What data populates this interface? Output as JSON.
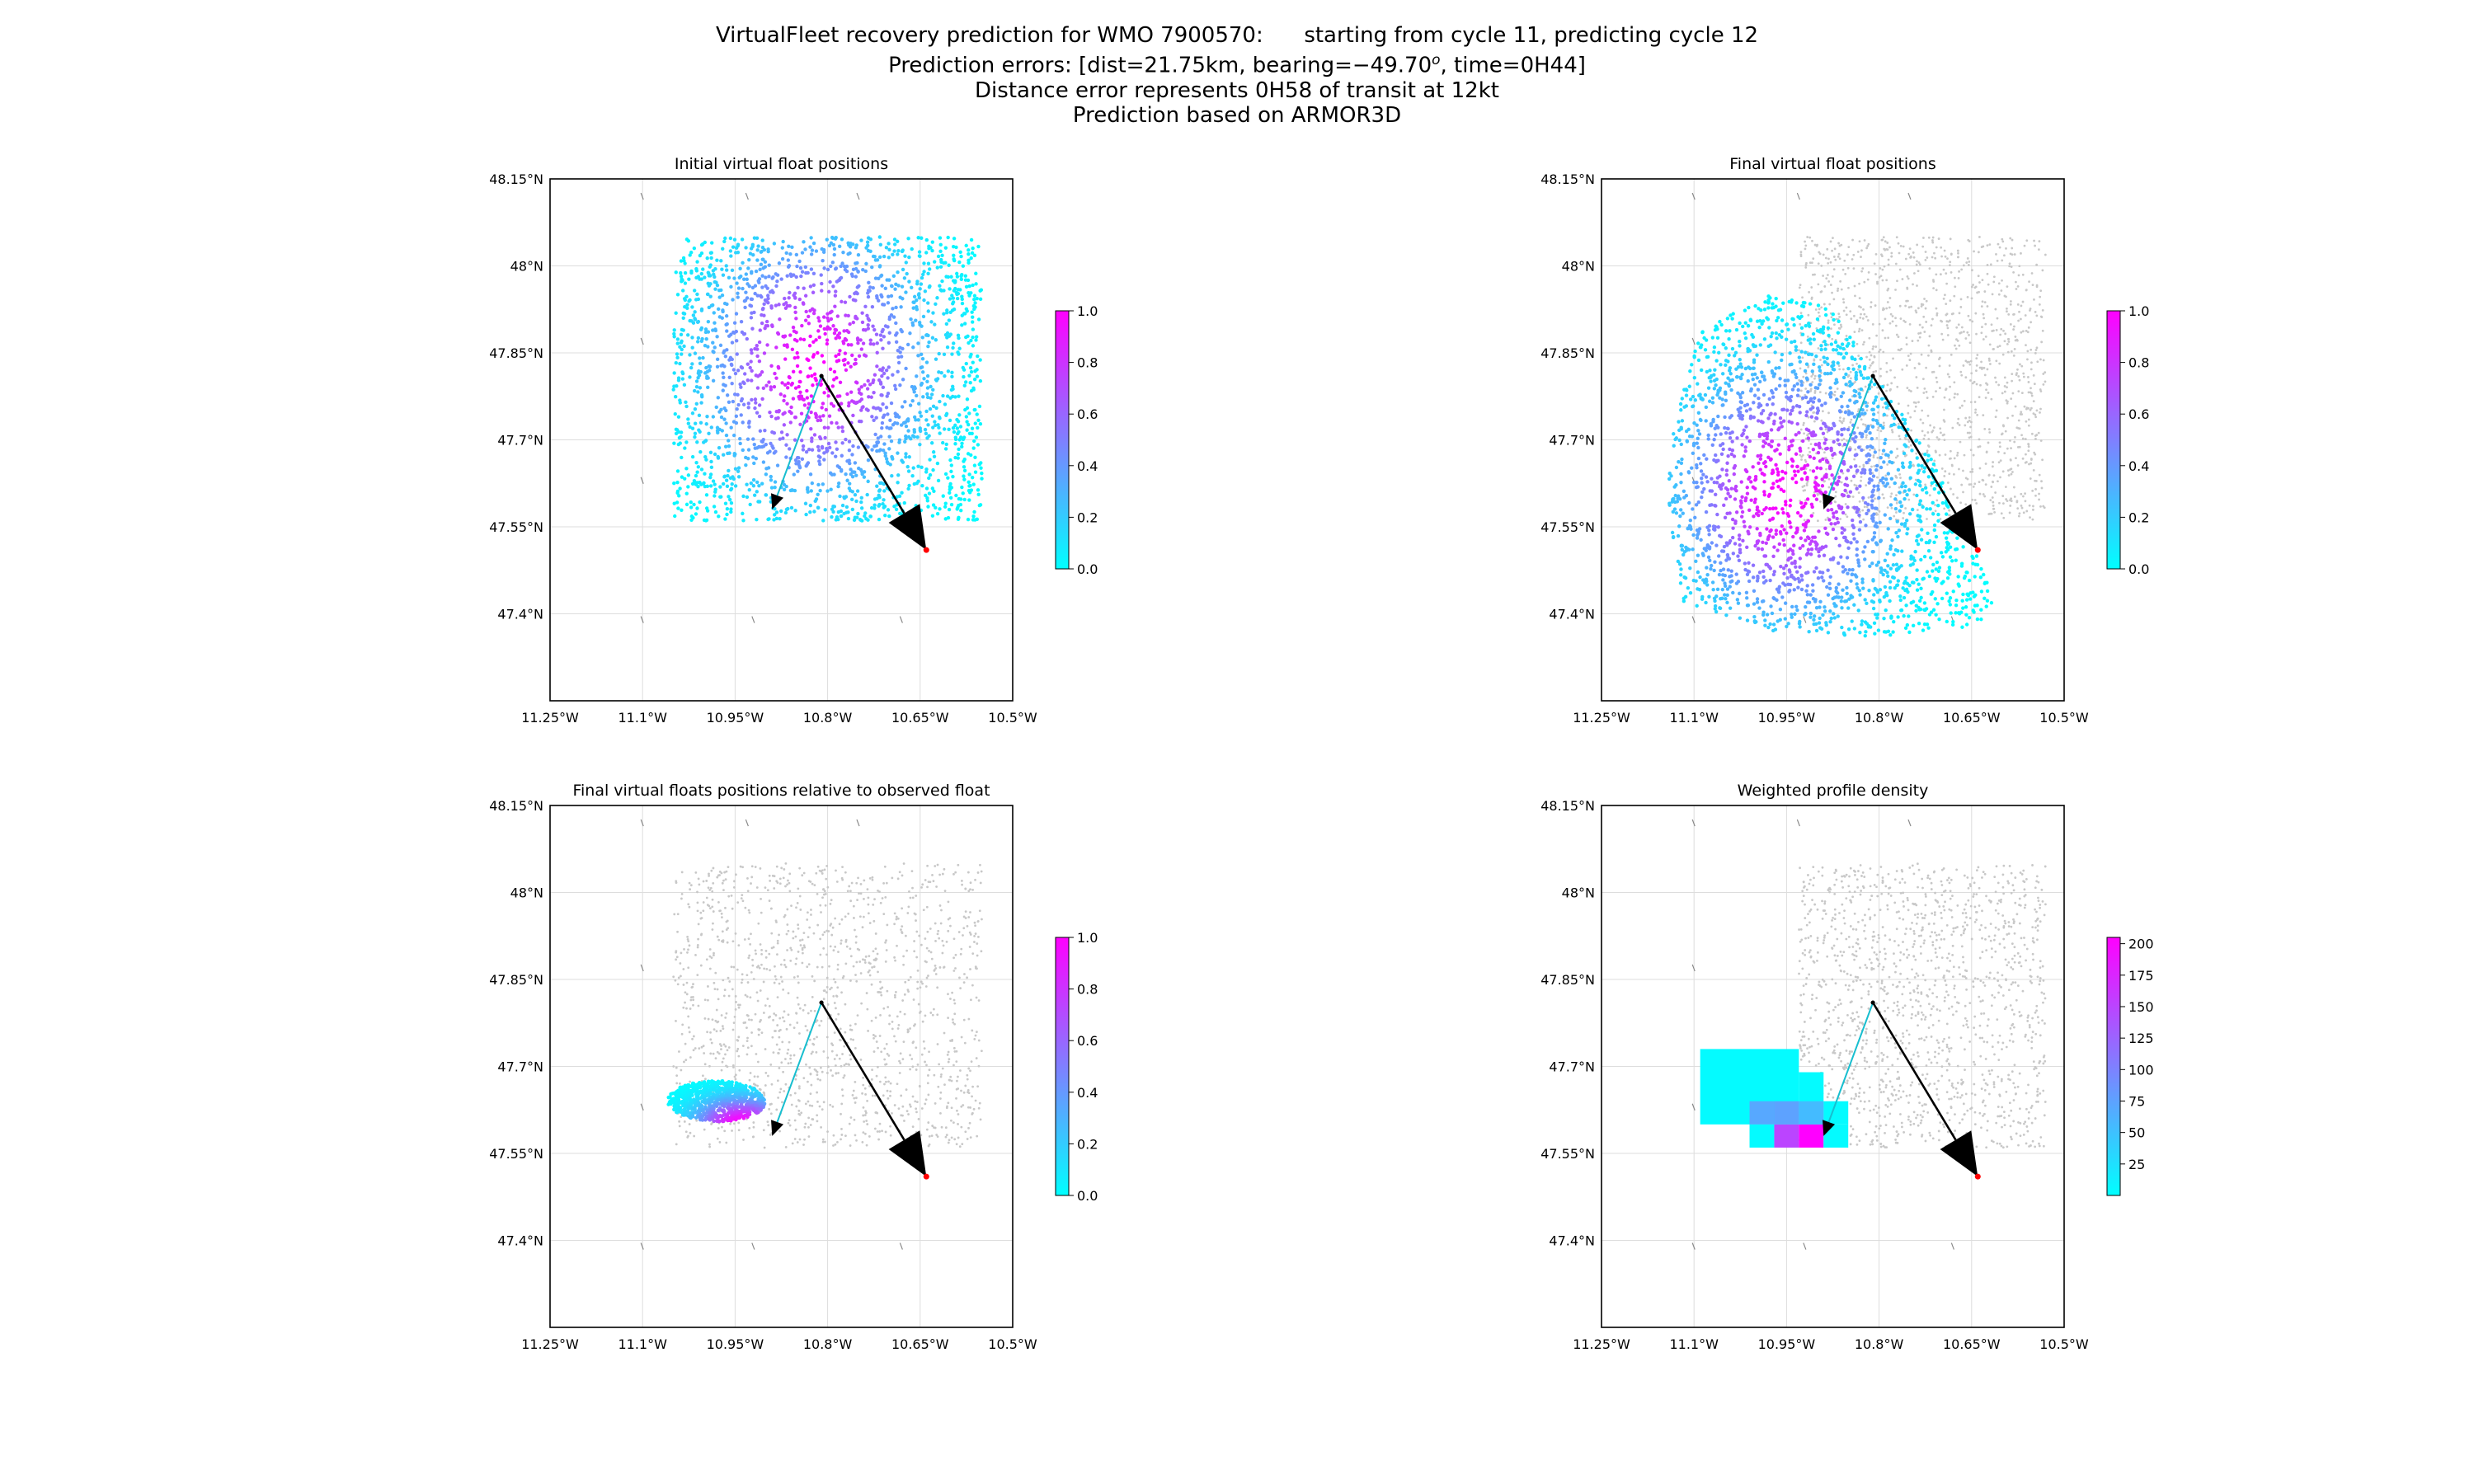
{
  "header": {
    "line1": "VirtualFleet recovery prediction for WMO 7900570:      starting from cycle 11, predicting cycle 12",
    "line2_prefix": "Prediction errors: [dist=21.75km, bearing=−49.70",
    "line2_sup": "o",
    "line2_suffix": ", time=0H44]",
    "line3": "Distance error represents 0H58 of transit at 12kt",
    "line4": "Prediction based on ARMOR3D"
  },
  "chart_data": [
    {
      "type": "scatter",
      "title": "Initial virtual float positions",
      "xlim": [
        -11.25,
        -10.5
      ],
      "ylim": [
        47.25,
        48.15
      ],
      "xticks": [
        -11.25,
        -11.1,
        -10.95,
        -10.8,
        -10.65,
        -10.5
      ],
      "xtick_labels": [
        "11.25°W",
        "11.1°W",
        "10.95°W",
        "10.8°W",
        "10.65°W",
        "10.5°W"
      ],
      "yticks": [
        47.4,
        47.55,
        47.7,
        47.85,
        48.0,
        48.15
      ],
      "ytick_labels": [
        "47.4°N",
        "47.55°N",
        "47.7°N",
        "47.85°N",
        "48°N",
        "48.15°N"
      ],
      "grid": true,
      "colorbar": {
        "min": 0.0,
        "max": 1.0,
        "ticks": [
          0.0,
          0.2,
          0.4,
          0.6,
          0.8,
          1.0
        ],
        "tick_labels": [
          "0.0",
          "0.2",
          "0.4",
          "0.6",
          "0.8",
          "1.0"
        ],
        "colormap": [
          "#00ffff",
          "#ff00ff"
        ]
      },
      "points": {
        "shape": "rectangle",
        "lon_range": [
          -11.05,
          -10.55
        ],
        "lat_range": [
          47.56,
          48.05
        ],
        "weight_center": [
          -10.82,
          47.83
        ],
        "count": 2000
      },
      "arrows": [
        {
          "from": [
            -10.81,
            47.81
          ],
          "to": [
            -10.89,
            47.58
          ],
          "color": "#17becf",
          "style": "thin"
        },
        {
          "from": [
            -10.81,
            47.81
          ],
          "to": [
            -10.64,
            47.51
          ],
          "color": "#000000",
          "style": "large-head"
        }
      ],
      "observed_end": [
        -10.64,
        47.51
      ]
    },
    {
      "type": "scatter",
      "title": "Final virtual float positions",
      "xlim": [
        -11.25,
        -10.5
      ],
      "ylim": [
        47.25,
        48.15
      ],
      "xticks": [
        -11.25,
        -11.1,
        -10.95,
        -10.8,
        -10.65,
        -10.5
      ],
      "xtick_labels": [
        "11.25°W",
        "11.1°W",
        "10.95°W",
        "10.8°W",
        "10.65°W",
        "10.5°W"
      ],
      "yticks": [
        47.4,
        47.55,
        47.7,
        47.85,
        48.0,
        48.15
      ],
      "ytick_labels": [
        "47.4°N",
        "47.55°N",
        "47.7°N",
        "47.85°N",
        "48°N",
        "48.15°N"
      ],
      "grid": true,
      "colorbar": {
        "min": 0.0,
        "max": 1.0,
        "ticks": [
          0.0,
          0.2,
          0.4,
          0.6,
          0.8,
          1.0
        ],
        "tick_labels": [
          "0.0",
          "0.2",
          "0.4",
          "0.6",
          "0.8",
          "1.0"
        ],
        "colormap": [
          "#00ffff",
          "#ff00ff"
        ]
      },
      "background_points": {
        "shape": "rectangle",
        "lon_range": [
          -10.93,
          -10.53
        ],
        "lat_range": [
          47.56,
          48.05
        ],
        "color": "#c8c8c8"
      },
      "points": {
        "shape": "polygon",
        "polygon": [
          [
            -11.09,
            47.89
          ],
          [
            -10.98,
            47.95
          ],
          [
            -10.88,
            47.93
          ],
          [
            -10.71,
            47.66
          ],
          [
            -10.61,
            47.43
          ],
          [
            -10.64,
            47.38
          ],
          [
            -10.8,
            47.36
          ],
          [
            -10.97,
            47.37
          ],
          [
            -11.12,
            47.42
          ],
          [
            -11.15,
            47.66
          ]
        ],
        "weight_center": [
          -10.95,
          47.61
        ],
        "count": 2000
      },
      "arrows": [
        {
          "from": [
            -10.81,
            47.81
          ],
          "to": [
            -10.89,
            47.58
          ],
          "color": "#17becf",
          "style": "thin"
        },
        {
          "from": [
            -10.81,
            47.81
          ],
          "to": [
            -10.64,
            47.51
          ],
          "color": "#000000",
          "style": "large-head"
        }
      ],
      "observed_end": [
        -10.64,
        47.51
      ]
    },
    {
      "type": "scatter",
      "title": "Final virtual floats positions relative to observed float",
      "xlim": [
        -11.25,
        -10.5
      ],
      "ylim": [
        47.25,
        48.15
      ],
      "xticks": [
        -11.25,
        -11.1,
        -10.95,
        -10.8,
        -10.65,
        -10.5
      ],
      "xtick_labels": [
        "11.25°W",
        "11.1°W",
        "10.95°W",
        "10.8°W",
        "10.65°W",
        "10.5°W"
      ],
      "yticks": [
        47.4,
        47.55,
        47.7,
        47.85,
        48.0,
        48.15
      ],
      "ytick_labels": [
        "47.4°N",
        "47.55°N",
        "47.7°N",
        "47.85°N",
        "48°N",
        "48.15°N"
      ],
      "grid": true,
      "colorbar": {
        "min": 0.0,
        "max": 1.0,
        "ticks": [
          0.0,
          0.2,
          0.4,
          0.6,
          0.8,
          1.0
        ],
        "tick_labels": [
          "0.0",
          "0.2",
          "0.4",
          "0.6",
          "0.8",
          "1.0"
        ],
        "colormap": [
          "#00ffff",
          "#ff00ff"
        ]
      },
      "background_points": {
        "shape": "rectangle",
        "lon_range": [
          -11.05,
          -10.55
        ],
        "lat_range": [
          47.56,
          48.05
        ],
        "color": "#c8c8c8"
      },
      "points": {
        "shape": "ellipse",
        "center": [
          -10.98,
          47.64
        ],
        "radius_lon": 0.08,
        "radius_lat": 0.035,
        "angle_deg": 25,
        "weight_center": [
          -10.94,
          47.6
        ],
        "count": 900
      },
      "arrows": [
        {
          "from": [
            -10.81,
            47.81
          ],
          "to": [
            -10.89,
            47.58
          ],
          "color": "#17becf",
          "style": "thin"
        },
        {
          "from": [
            -10.81,
            47.81
          ],
          "to": [
            -10.64,
            47.51
          ],
          "color": "#000000",
          "style": "large-head"
        }
      ],
      "observed_end": [
        -10.64,
        47.51
      ]
    },
    {
      "type": "heatmap",
      "title": "Weighted profile density",
      "xlim": [
        -11.25,
        -10.5
      ],
      "ylim": [
        47.25,
        48.15
      ],
      "xticks": [
        -11.25,
        -11.1,
        -10.95,
        -10.8,
        -10.65,
        -10.5
      ],
      "xtick_labels": [
        "11.25°W",
        "11.1°W",
        "10.95°W",
        "10.8°W",
        "10.65°W",
        "10.5°W"
      ],
      "yticks": [
        47.4,
        47.55,
        47.7,
        47.85,
        48.0,
        48.15
      ],
      "ytick_labels": [
        "47.4°N",
        "47.55°N",
        "47.7°N",
        "47.85°N",
        "48°N",
        "48.15°N"
      ],
      "grid": true,
      "colorbar": {
        "min": 0,
        "max": 205,
        "ticks": [
          25,
          50,
          75,
          100,
          125,
          150,
          175,
          200
        ],
        "tick_labels": [
          "25",
          "50",
          "75",
          "100",
          "125",
          "150",
          "175",
          "200"
        ],
        "colormap": [
          "#00ffff",
          "#ff00ff"
        ]
      },
      "background_points": {
        "shape": "rectangle",
        "lon_range": [
          -10.93,
          -10.53
        ],
        "lat_range": [
          47.56,
          48.05
        ],
        "color": "#c8c8c8"
      },
      "cells": [
        {
          "lon": [
            -11.09,
            -10.93
          ],
          "lat": [
            47.6,
            47.73
          ],
          "value": 3
        },
        {
          "lon": [
            -10.93,
            -10.89
          ],
          "lat": [
            47.6,
            47.69
          ],
          "value": 3
        },
        {
          "lon": [
            -10.89,
            -10.85
          ],
          "lat": [
            47.6,
            47.64
          ],
          "value": 3
        },
        {
          "lon": [
            -11.01,
            -10.97
          ],
          "lat": [
            47.56,
            47.6
          ],
          "value": 3
        },
        {
          "lon": [
            -10.97,
            -10.93
          ],
          "lat": [
            47.56,
            47.6
          ],
          "value": 150
        },
        {
          "lon": [
            -10.93,
            -10.89
          ],
          "lat": [
            47.56,
            47.6
          ],
          "value": 205
        },
        {
          "lon": [
            -10.89,
            -10.85
          ],
          "lat": [
            47.56,
            47.6
          ],
          "value": 3
        },
        {
          "lon": [
            -11.01,
            -10.97
          ],
          "lat": [
            47.6,
            47.64
          ],
          "value": 70
        },
        {
          "lon": [
            -10.97,
            -10.93
          ],
          "lat": [
            47.6,
            47.64
          ],
          "value": 75
        },
        {
          "lon": [
            -10.93,
            -10.89
          ],
          "lat": [
            47.6,
            47.64
          ],
          "value": 55
        }
      ],
      "arrows": [
        {
          "from": [
            -10.81,
            47.81
          ],
          "to": [
            -10.89,
            47.58
          ],
          "color": "#17becf",
          "style": "thin"
        },
        {
          "from": [
            -10.81,
            47.81
          ],
          "to": [
            -10.64,
            47.51
          ],
          "color": "#000000",
          "style": "large-head"
        }
      ],
      "observed_end": [
        -10.64,
        47.51
      ]
    }
  ]
}
